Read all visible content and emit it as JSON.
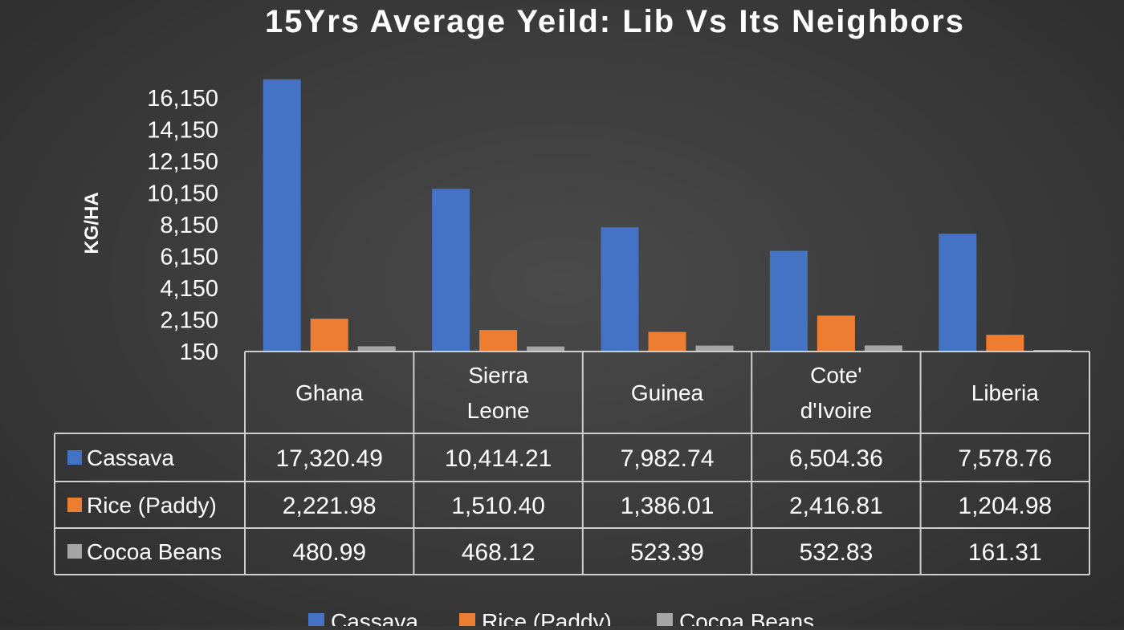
{
  "chart_data": {
    "type": "bar",
    "title": "15Yrs Average Yeild: Lib Vs Its Neighbors",
    "xlabel": "",
    "ylabel": "KG/HA",
    "ylim": [
      150,
      17800
    ],
    "yticks": [
      "16,150",
      "14,150",
      "12,150",
      "10,150",
      "8,150",
      "6,150",
      "4,150",
      "2,150",
      "150"
    ],
    "ytick_values": [
      16150,
      14150,
      12150,
      10150,
      8150,
      6150,
      4150,
      2150,
      150
    ],
    "categories": [
      [
        "Ghana"
      ],
      [
        "Sierra",
        "Leone"
      ],
      [
        "Guinea"
      ],
      [
        "Cote'",
        "d'Ivoire"
      ],
      [
        "Liberia"
      ]
    ],
    "series": [
      {
        "name": "Cassava",
        "color": "#4472c4",
        "values": [
          17320.49,
          10414.21,
          7982.74,
          6504.36,
          7578.76
        ],
        "labels": [
          "17,320.49",
          "10,414.21",
          "7,982.74",
          "6,504.36",
          "7,578.76"
        ]
      },
      {
        "name": "Rice (Paddy)",
        "color": "#ed7d31",
        "values": [
          2221.98,
          1510.4,
          1386.01,
          2416.81,
          1204.98
        ],
        "labels": [
          "2,221.98",
          "1,510.40",
          "1,386.01",
          "2,416.81",
          "1,204.98"
        ]
      },
      {
        "name": "Cocoa Beans",
        "color": "#a5a5a5",
        "values": [
          480.99,
          468.12,
          523.39,
          532.83,
          161.31
        ],
        "labels": [
          "480.99",
          "468.12",
          "523.39",
          "532.83",
          "161.31"
        ]
      }
    ],
    "data_table": true,
    "legend_position": "bottom",
    "grid": false
  }
}
